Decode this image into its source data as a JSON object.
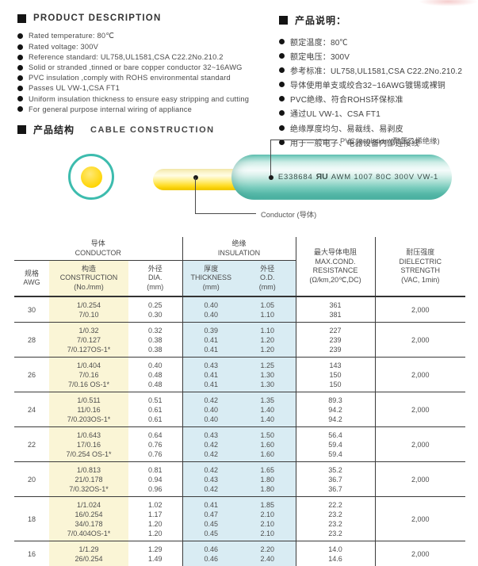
{
  "colors": {
    "teal": "#3dbcae",
    "conductor_yellow": "#ffd400",
    "table_yellow": "#faf5d6",
    "table_blue": "#d9ecf3"
  },
  "product_description": {
    "title": "PRODUCT DESCRIPTION",
    "items": [
      "Rated temperature: 80℃",
      "Rated voltage: 300V",
      "Reference standard: UL758,UL1581,CSA C22.2No.210.2",
      "Solid or stranded ,tinned or bare copper conductor 32~16AWG",
      "PVC insulation ,comply with ROHS environmental standard",
      "Passes UL VW-1,CSA FT1",
      "Uniform insulation thickness to ensure easy stripping and cutting",
      "For general purpose internal wiring of appliance"
    ]
  },
  "product_description_cn": {
    "title": "产品说明：",
    "items": [
      "额定温度：80℃",
      "额定电压：300V",
      "参考标准：UL758,UL1581,CSA C22.2No.210.2",
      "导体使用单支或绞合32~16AWG镀锡或裸铜",
      "PVC绝缘、符合ROHS环保标准",
      "通过UL VW-1、CSA FT1",
      "绝缘厚度均匀、易裁线、易剥皮",
      "用于一般电子、电器设备内部连接线"
    ]
  },
  "construction_section": {
    "title_cn": "产品结构",
    "title_en": "CABLE CONSTRUCTION",
    "insulation_label": "PVC insulation (聚氯乙烯绝缘)",
    "conductor_label": "Conductor (导体)",
    "cable_print": {
      "cert_no": "E338684",
      "ul_mark": "ЯU",
      "marking": "AWM 1007 80C 300V VW-1"
    }
  },
  "table": {
    "group_conductor": "导体\nCONDUCTOR",
    "group_insulation": "绝缘\nINSULATION",
    "col_awg": "规格\nAWG",
    "col_construction": "构造\nCONSTRUCTION\n(No./mm)",
    "col_dia": "外径\nDIA.\n(mm)",
    "col_thickness": "厚度\nTHICKNESS\n(mm)",
    "col_od": "外径\nO.D.\n(mm)",
    "col_resistance": "最大导体电阻\nMAX.COND.\nRESISTANCE\n(Ω/km,20℃,DC)",
    "col_dielectric": "耐压强度\nDIELECTRIC\nSTRENGTH\n(VAC, 1min)",
    "rows": [
      {
        "awg": "30",
        "construction": [
          "1/0.254",
          "7/0.10"
        ],
        "dia": [
          "0.25",
          "0.30"
        ],
        "thickness": [
          "0.40",
          "0.40"
        ],
        "od": [
          "1.05",
          "1.10"
        ],
        "resistance": [
          "361",
          "381"
        ],
        "dielectric": "2,000"
      },
      {
        "awg": "28",
        "construction": [
          "1/0.32",
          "7/0.127",
          "7/0.127OS-1*"
        ],
        "dia": [
          "0.32",
          "0.38",
          "0.38"
        ],
        "thickness": [
          "0.39",
          "0.41",
          "0.41"
        ],
        "od": [
          "1.10",
          "1.20",
          "1.20"
        ],
        "resistance": [
          "227",
          "239",
          "239"
        ],
        "dielectric": "2,000"
      },
      {
        "awg": "26",
        "construction": [
          "1/0.404",
          "7/0.16",
          "7/0.16 OS-1*"
        ],
        "dia": [
          "0.40",
          "0.48",
          "0.48"
        ],
        "thickness": [
          "0.43",
          "0.41",
          "0.41"
        ],
        "od": [
          "1.25",
          "1.30",
          "1.30"
        ],
        "resistance": [
          "143",
          "150",
          "150"
        ],
        "dielectric": "2,000"
      },
      {
        "awg": "24",
        "construction": [
          "1/0.511",
          "11/0.16",
          "7/0.203OS-1*"
        ],
        "dia": [
          "0.51",
          "0.61",
          "0.61"
        ],
        "thickness": [
          "0.42",
          "0.40",
          "0.40"
        ],
        "od": [
          "1.35",
          "1.40",
          "1.40"
        ],
        "resistance": [
          "89.3",
          "94.2",
          "94.2"
        ],
        "dielectric": "2,000"
      },
      {
        "awg": "22",
        "construction": [
          "1/0.643",
          "17/0.16",
          "7/0.254 OS-1*"
        ],
        "dia": [
          "0.64",
          "0.76",
          "0.76"
        ],
        "thickness": [
          "0.43",
          "0.42",
          "0.42"
        ],
        "od": [
          "1.50",
          "1.60",
          "1.60"
        ],
        "resistance": [
          "56.4",
          "59.4",
          "59.4"
        ],
        "dielectric": "2,000"
      },
      {
        "awg": "20",
        "construction": [
          "1/0.813",
          "21/0.178",
          "7/0.32OS-1*"
        ],
        "dia": [
          "0.81",
          "0.94",
          "0.96"
        ],
        "thickness": [
          "0.42",
          "0.43",
          "0.42"
        ],
        "od": [
          "1.65",
          "1.80",
          "1.80"
        ],
        "resistance": [
          "35.2",
          "36.7",
          "36.7"
        ],
        "dielectric": "2,000"
      },
      {
        "awg": "18",
        "construction": [
          "1/1.024",
          "16/0.254",
          "34/0.178",
          "7/0.404OS-1*"
        ],
        "dia": [
          "1.02",
          "1.17",
          "1.20",
          "1.20"
        ],
        "thickness": [
          "0.41",
          "0.47",
          "0.45",
          "0.45"
        ],
        "od": [
          "1.85",
          "2.10",
          "2.10",
          "2.10"
        ],
        "resistance": [
          "22.2",
          "23.2",
          "23.2",
          "23.2"
        ],
        "dielectric": "2,000"
      },
      {
        "awg": "16",
        "construction": [
          "1/1.29",
          "26/0.254"
        ],
        "dia": [
          "1.29",
          "1.49"
        ],
        "thickness": [
          "0.46",
          "0.46"
        ],
        "od": [
          "2.20",
          "2.40"
        ],
        "resistance": [
          "14.0",
          "14.6"
        ],
        "dielectric": "2,000"
      }
    ]
  }
}
